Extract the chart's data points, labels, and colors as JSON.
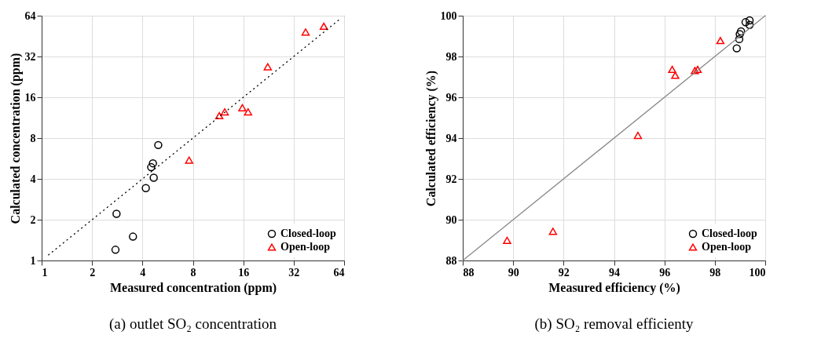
{
  "chart_data": [
    {
      "type": "scatter",
      "title": "(a) outlet SO₂ concentration",
      "xlabel": "Measured concentration (ppm)",
      "ylabel": "Calculated concentration (ppm)",
      "log": "xy",
      "xlim": [
        1,
        64
      ],
      "ylim": [
        1,
        64
      ],
      "xticks": [
        1,
        2,
        4,
        8,
        16,
        32,
        64
      ],
      "yticks": [
        1,
        2,
        4,
        8,
        16,
        32,
        64
      ],
      "grid": true,
      "legend": "bottom right",
      "series": [
        {
          "name": "Closed-loop",
          "color": "#000000",
          "marker": "circle",
          "x": [
            2.76,
            2.8,
            3.51,
            4.19,
            4.67,
            4.51,
            4.62,
            4.97
          ],
          "values": [
            1.2,
            2.21,
            1.5,
            3.42,
            4.08,
            4.88,
            5.21,
            7.11
          ]
        },
        {
          "name": "Open-loop",
          "color": "#ff0000",
          "marker": "triangle",
          "x": [
            7.6,
            11.5,
            12.4,
            15.8,
            17.1,
            22.4,
            37.7,
            48.4
          ],
          "values": [
            5.5,
            11.7,
            12.5,
            13.4,
            12.5,
            26.9,
            48.5,
            53.5
          ]
        },
        {
          "type": "line",
          "color": "#000000",
          "line_style": "dotted",
          "x": [
            1.1,
            60
          ],
          "values": [
            1.1,
            60
          ]
        }
      ]
    },
    {
      "type": "scatter",
      "title": "(b) SO₂ removal efficienty",
      "xlabel": "Measured efficiency (%)",
      "ylabel": "Calculated efficiency (%)",
      "xlim": [
        88,
        100
      ],
      "ylim": [
        88,
        100
      ],
      "xticks": [
        88,
        90,
        92,
        94,
        96,
        98,
        100
      ],
      "yticks": [
        88,
        90,
        92,
        94,
        96,
        98,
        100
      ],
      "grid": true,
      "legend": "bottom right",
      "series": [
        {
          "name": "Closed-loop",
          "color": "#000000",
          "marker": "circle",
          "x": [
            98.87,
            98.97,
            98.99,
            99.04,
            99.22,
            99.38,
            99.38
          ],
          "values": [
            98.4,
            98.85,
            99.1,
            99.23,
            99.68,
            99.77,
            99.55
          ]
        },
        {
          "name": "Open-loop",
          "color": "#ff0000",
          "marker": "triangle",
          "x": [
            89.76,
            91.58,
            94.95,
            96.31,
            96.43,
            97.21,
            97.32,
            98.22
          ],
          "values": [
            88.99,
            89.43,
            94.13,
            97.37,
            97.08,
            97.31,
            97.37,
            98.78
          ]
        },
        {
          "type": "line",
          "color": "#888888",
          "line_style": "solid",
          "x": [
            88,
            100
          ],
          "values": [
            88,
            100
          ]
        }
      ]
    }
  ]
}
